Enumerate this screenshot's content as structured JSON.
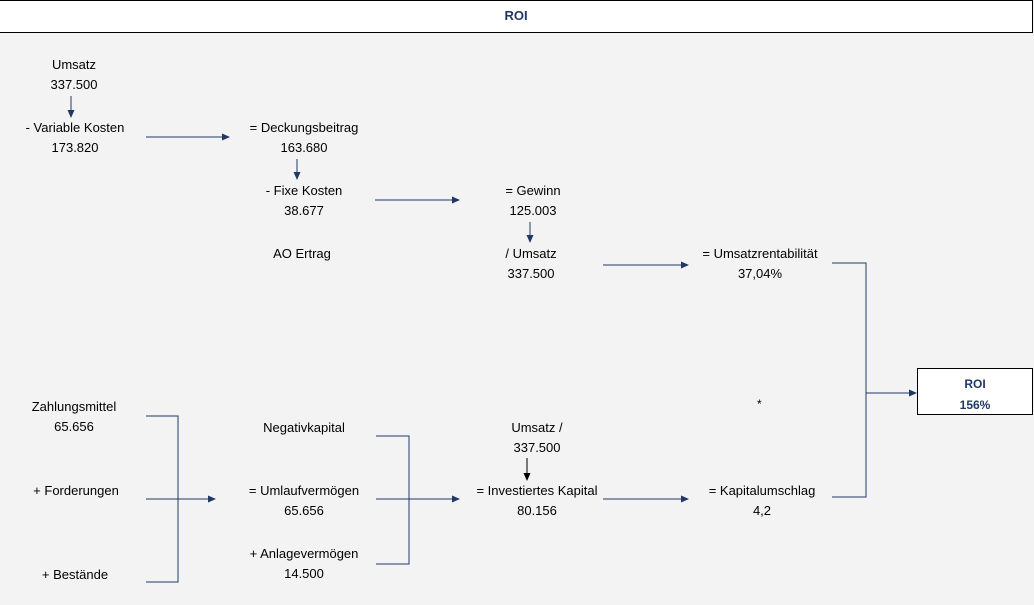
{
  "header": {
    "title": "ROI"
  },
  "nodes": {
    "umsatz": {
      "label": "Umsatz",
      "value": "337.500"
    },
    "variable_kosten": {
      "label": "- Variable Kosten",
      "value": "173.820"
    },
    "deckungsbeitrag": {
      "label": "= Deckungsbeitrag",
      "value": "163.680"
    },
    "fixe_kosten": {
      "label": "- Fixe Kosten",
      "value": "38.677"
    },
    "ao_ertrag": {
      "label": "AO Ertrag"
    },
    "gewinn": {
      "label": "= Gewinn",
      "value": "125.003"
    },
    "div_umsatz": {
      "label": "/ Umsatz",
      "value": "337.500"
    },
    "umsatzrentabilitaet": {
      "label": "= Umsatzrentabilität",
      "value": "37,04%"
    },
    "zahlungsmittel": {
      "label": "Zahlungsmittel",
      "value": "65.656"
    },
    "forderungen": {
      "label": "+ Forderungen"
    },
    "bestaende": {
      "label": "+ Bestände"
    },
    "negativkapital": {
      "label": "Negativkapital"
    },
    "umlaufvermoegen": {
      "label": "= Umlaufvermögen",
      "value": "65.656"
    },
    "anlagevermoegen": {
      "label": "+ Anlagevermögen",
      "value": "14.500"
    },
    "umsatz_2": {
      "label": "Umsatz /",
      "value": "337.500"
    },
    "investiertes_kapital": {
      "label": "= Investiertes Kapital",
      "value": "80.156"
    },
    "kapitalumschlag": {
      "label": "= Kapitalumschlag",
      "value": "4,2"
    }
  },
  "multiply_symbol": "*",
  "roi": {
    "label": "ROI",
    "value": "156%"
  },
  "colors": {
    "accent": "#1f3864",
    "background": "#f3f3f3"
  }
}
